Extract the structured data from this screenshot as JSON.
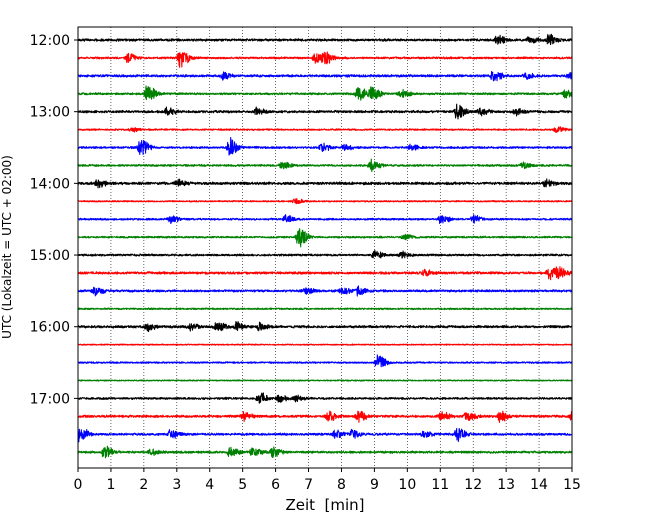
{
  "chart_data": {
    "type": "line",
    "title": "",
    "xlabel": "Zeit  [min]",
    "ylabel": "UTC (Lokalzeit = UTC + 02:00)",
    "xlim": [
      0,
      15
    ],
    "x_ticks": [
      "0",
      "1",
      "2",
      "3",
      "4",
      "5",
      "6",
      "7",
      "8",
      "9",
      "10",
      "11",
      "12",
      "13",
      "14",
      "15"
    ],
    "y_ticks": [
      "12:00",
      "13:00",
      "14:00",
      "15:00",
      "16:00",
      "17:00"
    ],
    "grid": "vertical dotted lines at each minute",
    "colors": [
      "#000000",
      "#ff0000",
      "#0000ff",
      "#008000"
    ],
    "series": [
      {
        "start": "12:00",
        "color": "#000000",
        "base_amplitude": 0.12,
        "events": [
          {
            "t": 12.7,
            "amp": 0.45
          },
          {
            "t": 13.7,
            "amp": 0.35
          },
          {
            "t": 14.3,
            "amp": 0.5
          }
        ]
      },
      {
        "start": "12:15",
        "color": "#ff0000",
        "base_amplitude": 0.1,
        "events": [
          {
            "t": 1.5,
            "amp": 0.4
          },
          {
            "t": 3.1,
            "amp": 0.95
          },
          {
            "t": 7.2,
            "amp": 0.5
          },
          {
            "t": 7.5,
            "amp": 0.6
          }
        ]
      },
      {
        "start": "12:30",
        "color": "#0000ff",
        "base_amplitude": 0.12,
        "events": [
          {
            "t": 4.4,
            "amp": 0.35
          },
          {
            "t": 12.6,
            "amp": 0.55
          },
          {
            "t": 13.6,
            "amp": 0.3
          },
          {
            "t": 14.9,
            "amp": 0.3
          }
        ]
      },
      {
        "start": "12:45",
        "color": "#008000",
        "base_amplitude": 0.1,
        "events": [
          {
            "t": 2.1,
            "amp": 0.85
          },
          {
            "t": 8.5,
            "amp": 0.7
          },
          {
            "t": 8.9,
            "amp": 0.75
          },
          {
            "t": 9.8,
            "amp": 0.4
          },
          {
            "t": 14.8,
            "amp": 0.45
          }
        ]
      },
      {
        "start": "13:00",
        "color": "#000000",
        "base_amplitude": 0.12,
        "events": [
          {
            "t": 2.7,
            "amp": 0.35
          },
          {
            "t": 5.4,
            "amp": 0.35
          },
          {
            "t": 11.5,
            "amp": 0.75
          },
          {
            "t": 12.2,
            "amp": 0.4
          },
          {
            "t": 13.3,
            "amp": 0.35
          }
        ]
      },
      {
        "start": "13:15",
        "color": "#ff0000",
        "base_amplitude": 0.08,
        "events": [
          {
            "t": 1.6,
            "amp": 0.25
          },
          {
            "t": 14.5,
            "amp": 0.3
          }
        ]
      },
      {
        "start": "13:30",
        "color": "#0000ff",
        "base_amplitude": 0.1,
        "events": [
          {
            "t": 1.9,
            "amp": 0.85
          },
          {
            "t": 4.6,
            "amp": 0.9
          },
          {
            "t": 7.4,
            "amp": 0.35
          },
          {
            "t": 8.1,
            "amp": 0.3
          },
          {
            "t": 10.1,
            "amp": 0.3
          }
        ]
      },
      {
        "start": "13:45",
        "color": "#008000",
        "base_amplitude": 0.1,
        "events": [
          {
            "t": 6.2,
            "amp": 0.4
          },
          {
            "t": 8.9,
            "amp": 0.55
          },
          {
            "t": 13.5,
            "amp": 0.3
          }
        ]
      },
      {
        "start": "14:00",
        "color": "#000000",
        "base_amplitude": 0.13,
        "events": [
          {
            "t": 0.6,
            "amp": 0.35
          },
          {
            "t": 3.0,
            "amp": 0.3
          },
          {
            "t": 14.2,
            "amp": 0.3
          }
        ]
      },
      {
        "start": "14:15",
        "color": "#ff0000",
        "base_amplitude": 0.07,
        "events": [
          {
            "t": 6.6,
            "amp": 0.25
          }
        ]
      },
      {
        "start": "14:30",
        "color": "#0000ff",
        "base_amplitude": 0.09,
        "events": [
          {
            "t": 2.8,
            "amp": 0.45
          },
          {
            "t": 6.3,
            "amp": 0.4
          },
          {
            "t": 11.0,
            "amp": 0.5
          },
          {
            "t": 12.0,
            "amp": 0.4
          }
        ]
      },
      {
        "start": "14:45",
        "color": "#008000",
        "base_amplitude": 0.09,
        "events": [
          {
            "t": 6.7,
            "amp": 1.05
          },
          {
            "t": 9.9,
            "amp": 0.3
          }
        ]
      },
      {
        "start": "15:00",
        "color": "#000000",
        "base_amplitude": 0.1,
        "events": [
          {
            "t": 9.0,
            "amp": 0.4
          },
          {
            "t": 9.8,
            "amp": 0.3
          }
        ]
      },
      {
        "start": "15:15",
        "color": "#ff0000",
        "base_amplitude": 0.12,
        "events": [
          {
            "t": 10.5,
            "amp": 0.3
          },
          {
            "t": 14.3,
            "amp": 0.6
          },
          {
            "t": 14.6,
            "amp": 0.55
          }
        ]
      },
      {
        "start": "15:30",
        "color": "#0000ff",
        "base_amplitude": 0.11,
        "events": [
          {
            "t": 0.5,
            "amp": 0.4
          },
          {
            "t": 6.9,
            "amp": 0.35
          },
          {
            "t": 8.0,
            "amp": 0.35
          },
          {
            "t": 8.5,
            "amp": 0.4
          }
        ]
      },
      {
        "start": "15:45",
        "color": "#008000",
        "base_amplitude": 0.08,
        "events": []
      },
      {
        "start": "16:00",
        "color": "#000000",
        "base_amplitude": 0.12,
        "events": [
          {
            "t": 2.1,
            "amp": 0.35
          },
          {
            "t": 3.4,
            "amp": 0.4
          },
          {
            "t": 4.2,
            "amp": 0.55
          },
          {
            "t": 4.8,
            "amp": 0.4
          },
          {
            "t": 5.5,
            "amp": 0.35
          }
        ]
      },
      {
        "start": "16:15",
        "color": "#ff0000",
        "base_amplitude": 0.06,
        "events": []
      },
      {
        "start": "16:30",
        "color": "#0000ff",
        "base_amplitude": 0.08,
        "events": [
          {
            "t": 9.1,
            "amp": 0.75
          }
        ]
      },
      {
        "start": "16:45",
        "color": "#008000",
        "base_amplitude": 0.06,
        "events": []
      },
      {
        "start": "17:00",
        "color": "#000000",
        "base_amplitude": 0.1,
        "events": [
          {
            "t": 5.5,
            "amp": 0.55
          },
          {
            "t": 6.1,
            "amp": 0.35
          },
          {
            "t": 6.6,
            "amp": 0.25
          }
        ]
      },
      {
        "start": "17:15",
        "color": "#ff0000",
        "base_amplitude": 0.12,
        "events": [
          {
            "t": 5.0,
            "amp": 0.4
          },
          {
            "t": 7.6,
            "amp": 0.45
          },
          {
            "t": 8.5,
            "amp": 0.5
          },
          {
            "t": 11.0,
            "amp": 0.45
          },
          {
            "t": 11.8,
            "amp": 0.5
          },
          {
            "t": 12.8,
            "amp": 0.55
          },
          {
            "t": 15.0,
            "amp": 0.45
          }
        ]
      },
      {
        "start": "17:30",
        "color": "#0000ff",
        "base_amplitude": 0.11,
        "events": [
          {
            "t": 0.05,
            "amp": 0.75
          },
          {
            "t": 2.8,
            "amp": 0.45
          },
          {
            "t": 7.8,
            "amp": 0.35
          },
          {
            "t": 8.3,
            "amp": 0.5
          },
          {
            "t": 10.5,
            "amp": 0.35
          },
          {
            "t": 11.5,
            "amp": 0.65
          }
        ]
      },
      {
        "start": "17:45",
        "color": "#008000",
        "base_amplitude": 0.11,
        "events": [
          {
            "t": 0.8,
            "amp": 0.6
          },
          {
            "t": 2.2,
            "amp": 0.3
          },
          {
            "t": 4.6,
            "amp": 0.45
          },
          {
            "t": 5.3,
            "amp": 0.5
          },
          {
            "t": 5.9,
            "amp": 0.5
          }
        ]
      }
    ]
  }
}
